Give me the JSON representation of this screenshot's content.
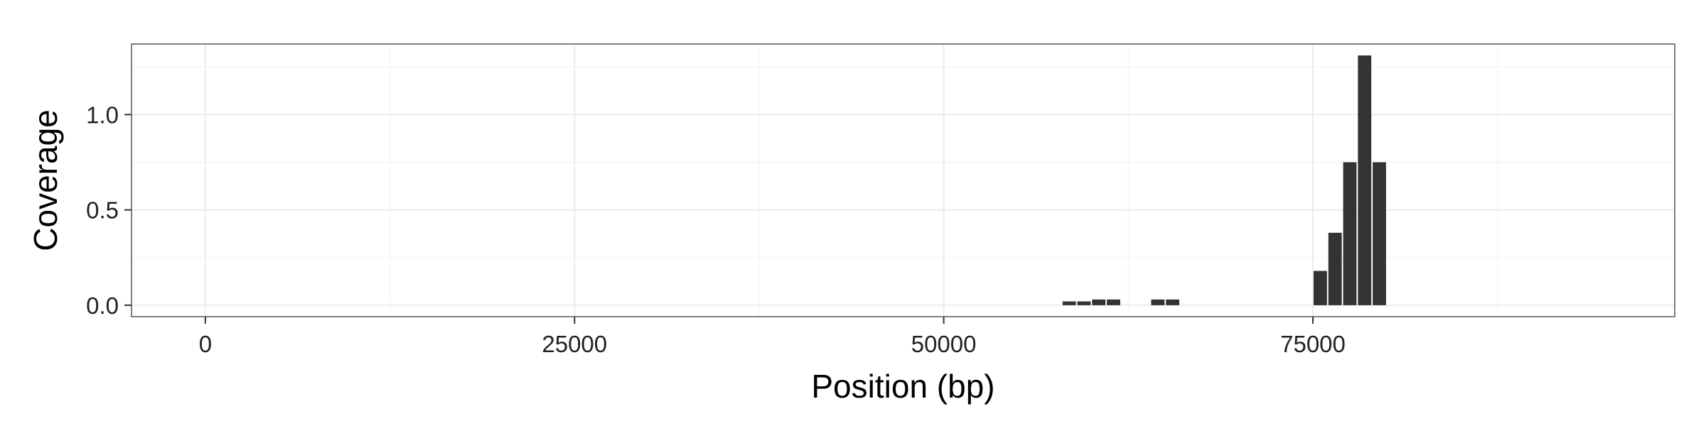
{
  "chart_data": {
    "type": "bar",
    "title": "",
    "xlabel": "Position (bp)",
    "ylabel": "Coverage",
    "xlim": [
      -5000,
      99500
    ],
    "ylim": [
      -0.06,
      1.37
    ],
    "x_ticks": [
      0,
      25000,
      50000,
      75000
    ],
    "x_tick_labels": [
      "0",
      "25000",
      "50000",
      "75000"
    ],
    "y_ticks": [
      0.0,
      0.5,
      1.0
    ],
    "y_tick_labels": [
      "0.0",
      "0.5",
      "1.0"
    ],
    "grid": true,
    "legend": "none",
    "bin_width": 1000,
    "bars": [
      {
        "x": 58500,
        "value": 0.02
      },
      {
        "x": 59500,
        "value": 0.02
      },
      {
        "x": 60500,
        "value": 0.03
      },
      {
        "x": 61500,
        "value": 0.03
      },
      {
        "x": 64500,
        "value": 0.03
      },
      {
        "x": 65500,
        "value": 0.03
      },
      {
        "x": 75500,
        "value": 0.18
      },
      {
        "x": 76500,
        "value": 0.38
      },
      {
        "x": 77500,
        "value": 0.75
      },
      {
        "x": 78500,
        "value": 1.31
      },
      {
        "x": 79500,
        "value": 0.75
      }
    ],
    "colors": {
      "bar": "#333333",
      "panel_border": "#7f7f7f",
      "grid_major": "#ebebeb",
      "grid_minor": "#f5f5f5"
    }
  }
}
